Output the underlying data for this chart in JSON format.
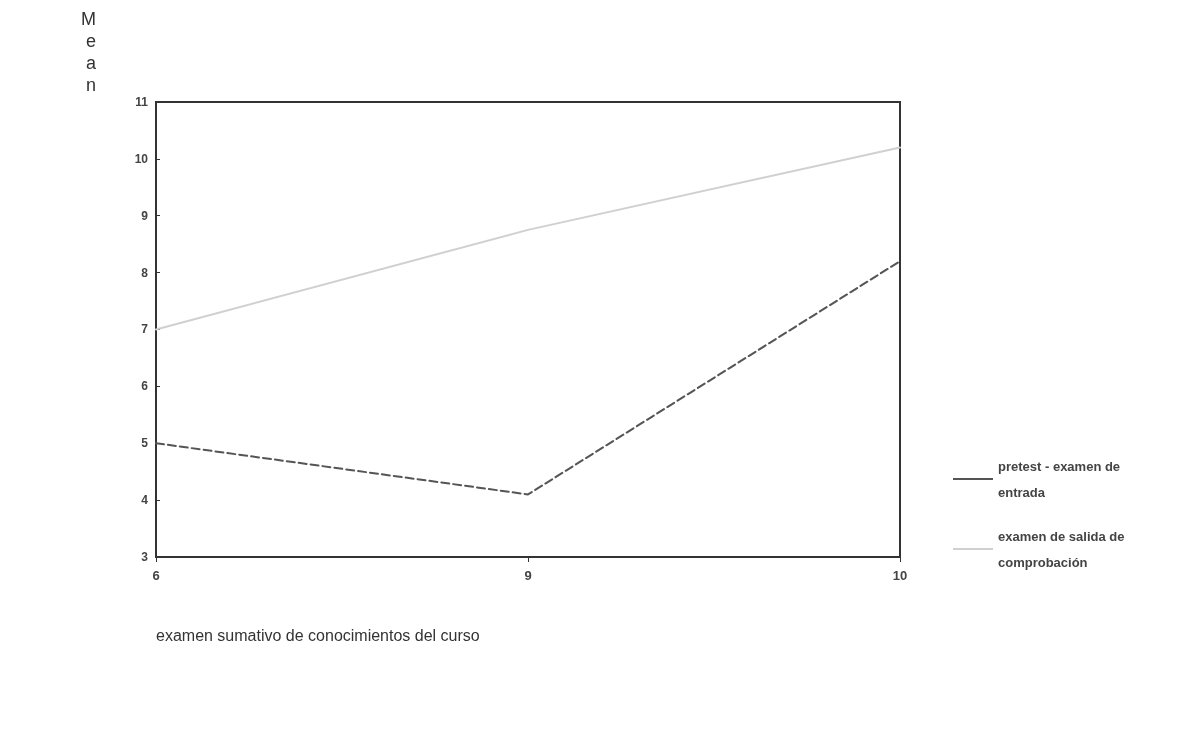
{
  "chart_data": {
    "type": "line",
    "xlabel": "examen sumativo de conocimientos del curso",
    "ylabel": "Mean",
    "categories": [
      "6",
      "9",
      "10"
    ],
    "series": [
      {
        "name": "pretest - examen de entrada",
        "color": "#555555",
        "line_style": "dashed",
        "values": [
          5,
          4.1,
          8.2
        ]
      },
      {
        "name": "examen de salida de comprobación",
        "color": "#d0d0d0",
        "line_style": "solid",
        "values": [
          7,
          8.75,
          10.2
        ]
      }
    ],
    "ylim": [
      3,
      11
    ],
    "yticks": [
      3,
      4,
      5,
      6,
      7,
      8,
      9,
      10,
      11
    ],
    "grid": false,
    "legend": "right",
    "marker": "none"
  }
}
